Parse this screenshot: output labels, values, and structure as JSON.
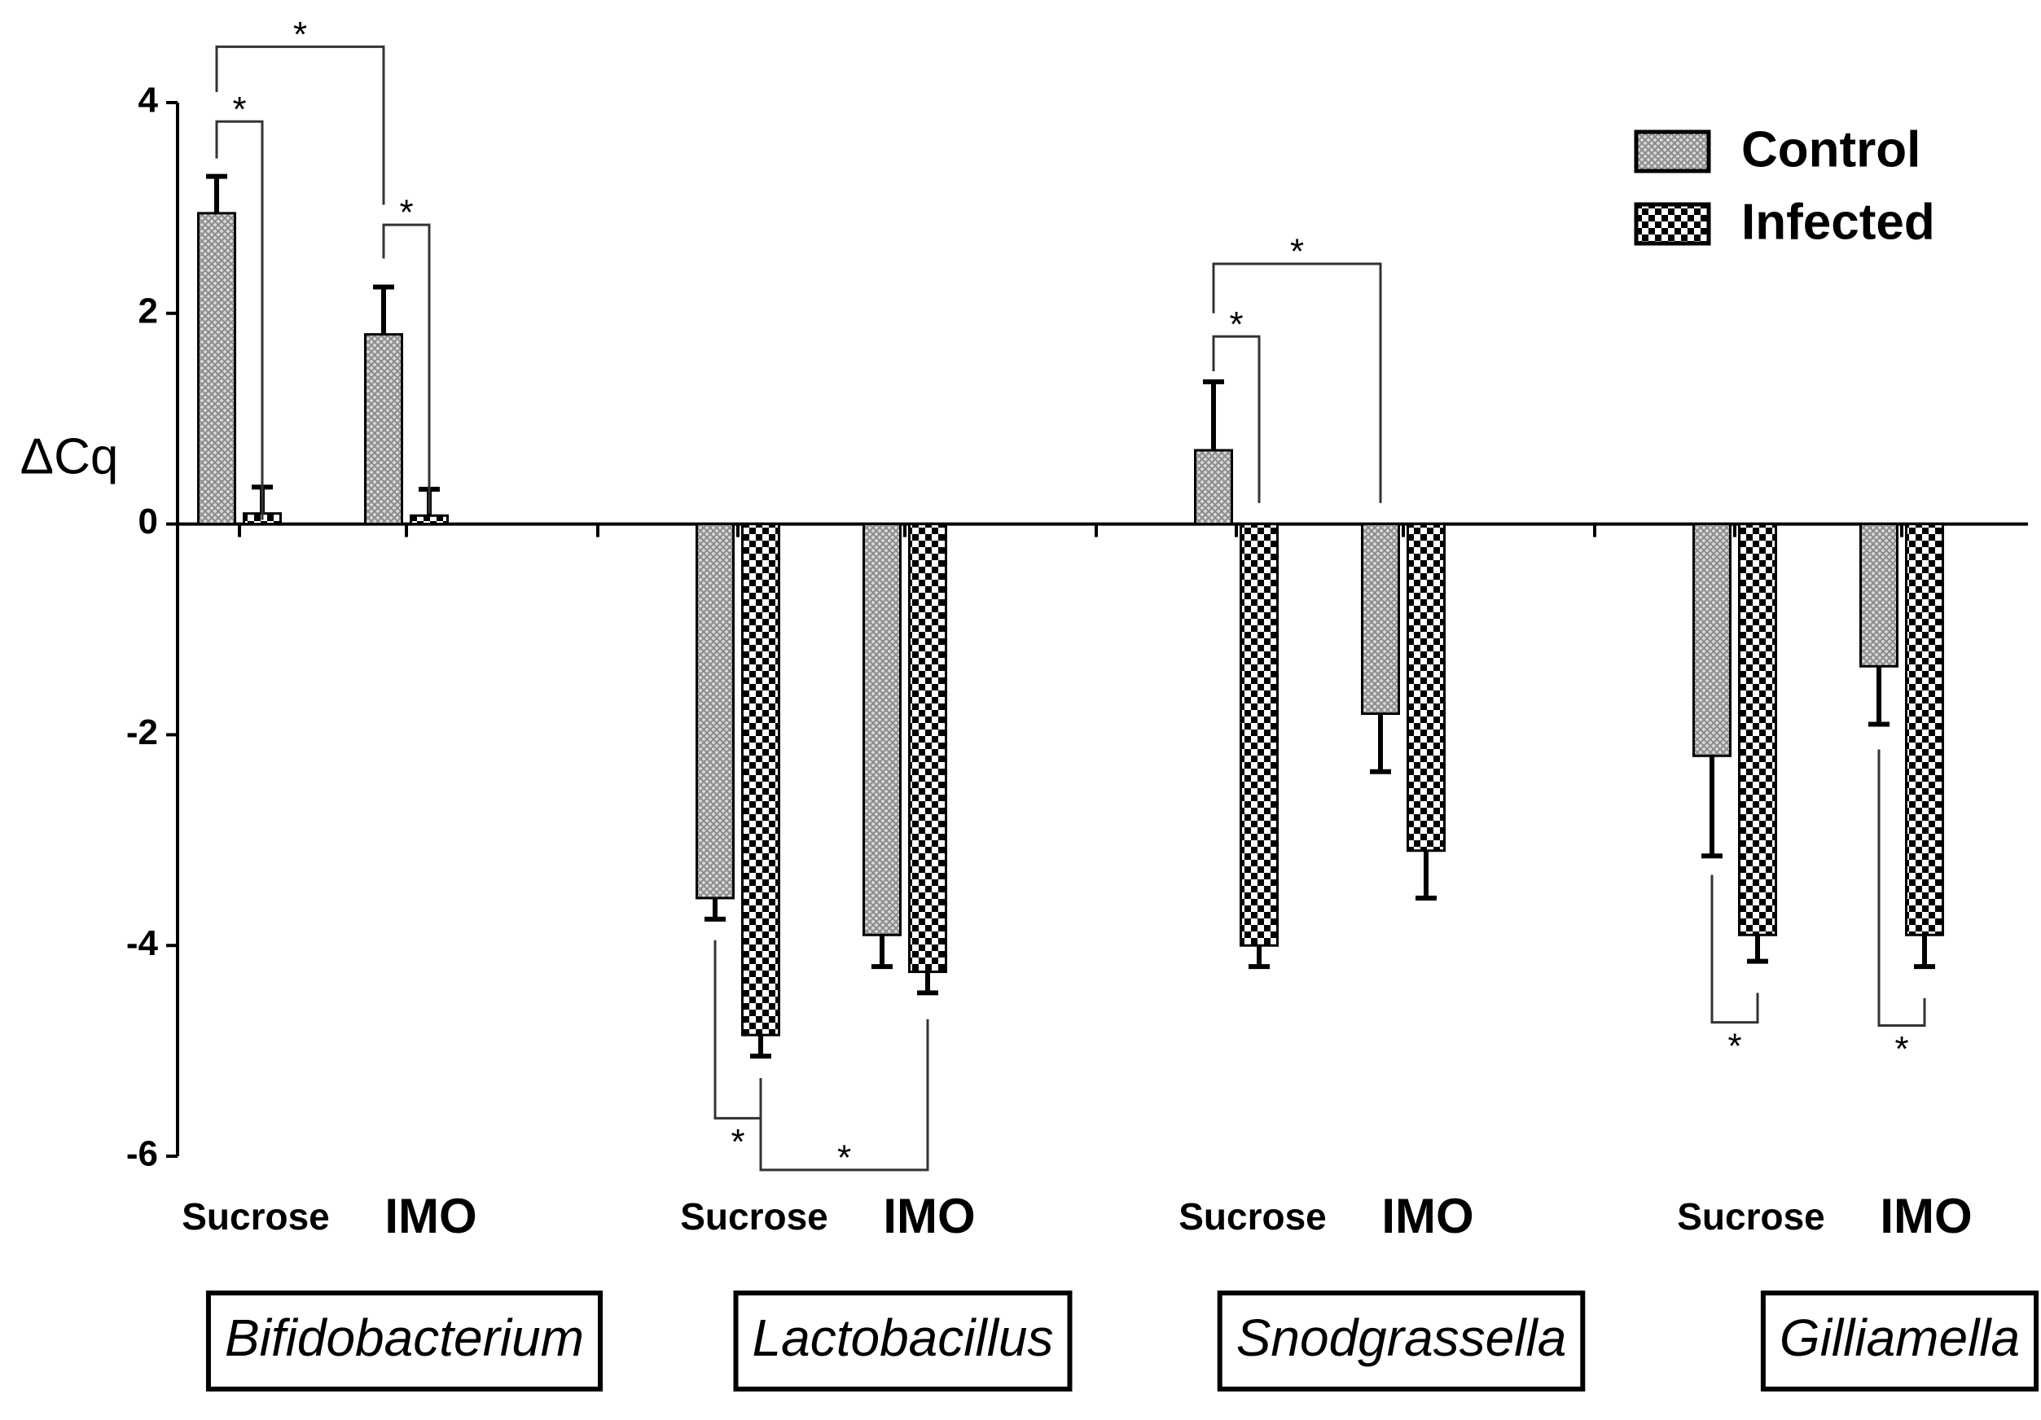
{
  "chart_data": {
    "type": "bar",
    "y_label": "ΔCq",
    "categories": [
      "Sucrose",
      "IMO",
      "Sucrose",
      "IMO",
      "Sucrose",
      "IMO",
      "Sucrose",
      "IMO"
    ],
    "groups": [
      "Bifidobacterium",
      "Lactobacillus",
      "Snodgrassella",
      "Gilliamella"
    ],
    "series": [
      {
        "name": "Control",
        "color": "#8a8a8a",
        "values": [
          2.95,
          1.8,
          -3.55,
          -3.9,
          0.7,
          -1.8,
          -2.2,
          -1.35
        ],
        "errors": [
          0.35,
          0.45,
          0.2,
          0.3,
          0.65,
          0.55,
          0.95,
          0.55
        ]
      },
      {
        "name": "Infected",
        "color": "#000000",
        "values": [
          0.1,
          0.08,
          -4.85,
          -4.25,
          -4.0,
          -3.1,
          -3.9,
          -3.9
        ],
        "errors": [
          0.25,
          0.25,
          0.2,
          0.2,
          0.2,
          0.45,
          0.25,
          0.3
        ]
      }
    ],
    "annotations": [
      "*",
      "*",
      "*",
      "*",
      "*",
      "*",
      "*",
      "*",
      "*"
    ],
    "ylim": [
      -6,
      4
    ],
    "yticks": [
      -6,
      -4,
      -2,
      0,
      2,
      4
    ],
    "legend": "upper right"
  }
}
